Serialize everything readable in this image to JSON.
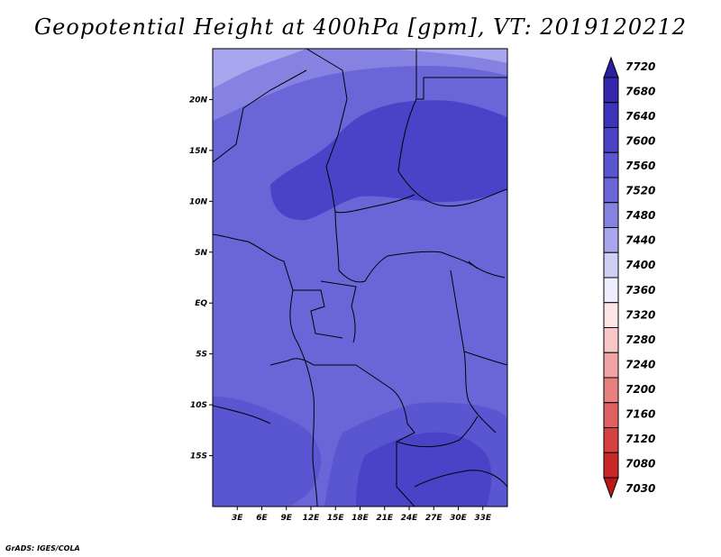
{
  "title": "Geopotential Height at 400hPa [gpm], VT: 2019120212",
  "credit": "GrADS: IGES/COLA",
  "map": {
    "lon_range": [
      0,
      36
    ],
    "lat_range": [
      -20,
      25
    ],
    "lon_ticks": [
      "3E",
      "6E",
      "9E",
      "12E",
      "15E",
      "18E",
      "21E",
      "24E",
      "27E",
      "30E",
      "33E"
    ],
    "lat_ticks": [
      "20N",
      "15N",
      "10N",
      "5N",
      "EQ",
      "5S",
      "10S",
      "15S"
    ]
  },
  "colorbar": {
    "levels": [
      "7720",
      "7680",
      "7640",
      "7600",
      "7560",
      "7520",
      "7480",
      "7440",
      "7400",
      "7360",
      "7320",
      "7280",
      "7240",
      "7200",
      "7160",
      "7120",
      "7080",
      "7030"
    ],
    "colors_top_to_bottom": [
      "#2a1f9e",
      "#3426ad",
      "#3d33bb",
      "#4a43c8",
      "#5a55d0",
      "#6b66d8",
      "#8682e2",
      "#a8a6ee",
      "#cfcff6",
      "#eeeeff",
      "#fde6e6",
      "#f8c8c8",
      "#f2a4a4",
      "#e88080",
      "#df6060",
      "#d54040",
      "#c82828",
      "#b81818"
    ]
  },
  "colors": {
    "c7520": "#6b66d8",
    "c7560": "#5a55d0",
    "c7600": "#4a43c8",
    "c7480": "#8682e2",
    "c7440": "#a8a6ee"
  }
}
